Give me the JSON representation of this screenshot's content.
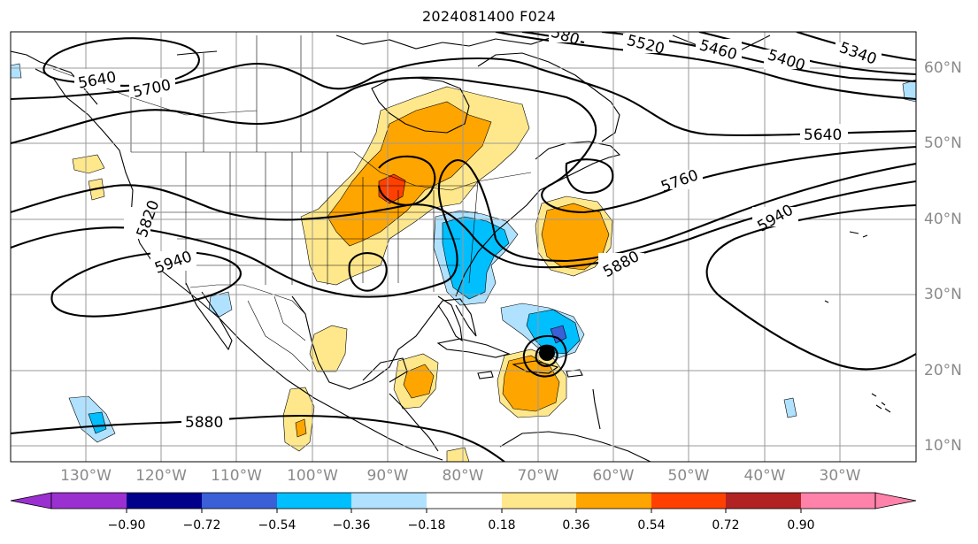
{
  "title": "2024081400 F024",
  "lon_labels": [
    "130°W",
    "120°W",
    "110°W",
    "100°W",
    "90°W",
    "80°W",
    "70°W",
    "60°W",
    "50°W",
    "40°W",
    "30°W"
  ],
  "lat_labels": [
    "60°N",
    "50°N",
    "40°N",
    "30°N",
    "20°N",
    "10°N"
  ],
  "contour_labels": [
    "5640",
    "5700",
    "5520",
    "5460",
    "5400",
    "5340",
    "5640",
    "5760",
    "5940",
    "5880",
    "5820",
    "5940",
    "5880",
    "580"
  ],
  "colorbar": {
    "ticks": [
      "−0.90",
      "−0.72",
      "−0.54",
      "−0.36",
      "−0.18",
      "0.18",
      "0.36",
      "0.54",
      "0.72",
      "0.90"
    ],
    "colors": [
      "#9b30d0",
      "#00008b",
      "#3a5fd6",
      "#00bfff",
      "#b0e2ff",
      "#ffffff",
      "#ffe88c",
      "#ffa500",
      "#ff4000",
      "#b22222",
      "#ff82ab"
    ]
  },
  "fill_colors": {
    "light_yellow": "#ffe88c",
    "orange": "#ffa500",
    "red_orange": "#ff4000",
    "deep_sky": "#00bfff",
    "light_blue": "#b0e2ff",
    "royal_blue": "#3a5fd6",
    "purple": "#9b30d0"
  },
  "marker": "storm-center-dot"
}
